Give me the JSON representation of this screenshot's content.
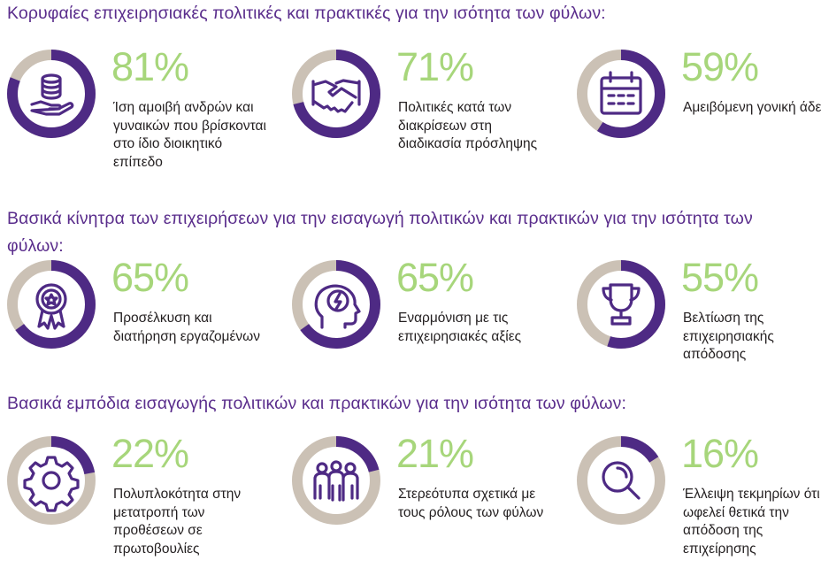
{
  "colors": {
    "heading": "#5a2d8c",
    "ring_fill": "#4e2a84",
    "ring_track": "#cbc1b5",
    "percent": "#a7d67b"
  },
  "sections": [
    {
      "heading": "Κορυφαίες επιχειρησιακές πολιτικές και πρακτικές για την ισότητα των φύλων:",
      "items": [
        {
          "value": 81,
          "percent": "81%",
          "icon": "coins-hand-icon",
          "label": "Ίση αμοιβή ανδρών και γυναικών που βρίσκονται στο ίδιο διοικητικό επίπεδο"
        },
        {
          "value": 71,
          "percent": "71%",
          "icon": "handshake-icon",
          "label": "Πολιτικές κατά των διακρίσεων στη διαδικασία πρόσληψης"
        },
        {
          "value": 59,
          "percent": "59%",
          "icon": "calendar-icon",
          "label": "Αμειβόμενη γονική άδεια"
        }
      ]
    },
    {
      "heading": "Βασικά κίνητρα των επιχειρήσεων για την εισαγωγή πολιτικών και πρακτικών για την ισότητα των φύλων:",
      "items": [
        {
          "value": 65,
          "percent": "65%",
          "icon": "award-ribbon-icon",
          "label": "Προσέλκυση και διατήρηση εργαζομένων"
        },
        {
          "value": 65,
          "percent": "65%",
          "icon": "head-idea-icon",
          "label": "Εναρμόνιση με τις επιχειρησιακές αξίες"
        },
        {
          "value": 55,
          "percent": "55%",
          "icon": "trophy-icon",
          "label": "Βελτίωση της επιχειρησιακής απόδοσης"
        }
      ]
    },
    {
      "heading": "Βασικά εμπόδια εισαγωγής πολιτικών και πρακτικών για την ισότητα των φύλων:",
      "items": [
        {
          "value": 22,
          "percent": "22%",
          "icon": "gear-icon",
          "label": "Πολυπλοκότητα στην μετατροπή των προθέσεων σε πρωτοβουλίες"
        },
        {
          "value": 21,
          "percent": "21%",
          "icon": "people-group-icon",
          "label": "Στερεότυπα σχετικά με τους ρόλους των φύλων"
        },
        {
          "value": 16,
          "percent": "16%",
          "icon": "magnifier-icon",
          "label": "Έλλειψη τεκμηρίων ότι ωφελεί θετικά την απόδοση της επιχείρησης"
        }
      ]
    }
  ],
  "chart_data": {
    "type": "donut",
    "unit": "%",
    "values": [
      81,
      71,
      59,
      65,
      65,
      55,
      22,
      21,
      16
    ]
  }
}
